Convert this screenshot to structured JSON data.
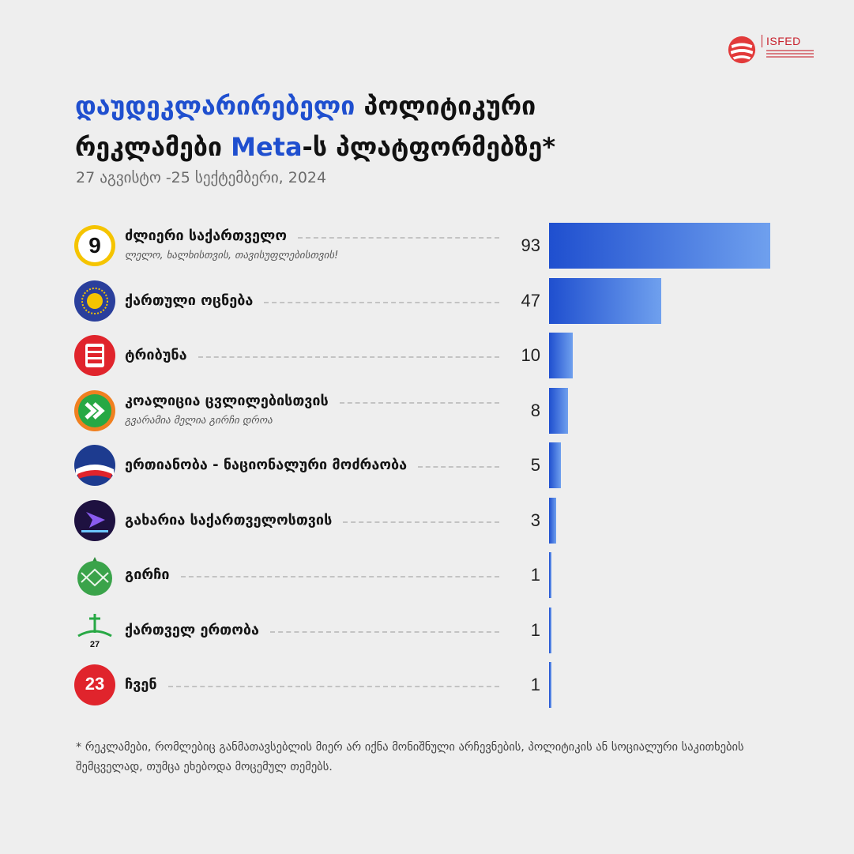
{
  "brand": {
    "name": "ISFED",
    "logo_icon": "isfed-ribbon-icon",
    "accent": "#c8202c"
  },
  "title": {
    "highlight": "დაუდეკლარირებელი",
    "line1_rest": " პოლიტიკური",
    "line2_start": "რეკლამები ",
    "line2_highlight": "Meta",
    "line2_rest": "-ს პლატფორმებზე*",
    "highlight_color": "#1f4fcf"
  },
  "subtitle": "27 აგვისტო -25 სექტემბერი, 2024",
  "chart_data": {
    "type": "bar",
    "orientation": "horizontal",
    "categories": [
      "ძლიერი საქართველო",
      "ქართული ოცნება",
      "ტრიბუნა",
      "კოალიცია ცვლილებისთვის",
      "ერთიანობა - ნაციონალური მოძრაობა",
      "გახარია საქართველოსთვის",
      "გირჩი",
      "ქართველ ერთობა",
      "ჩვენ"
    ],
    "subtitles": [
      "ლელო, ხალხისთვის, თავისუფლებისთვის!",
      "",
      "",
      "გვარამია მელია გირჩი დროა",
      "",
      "",
      "",
      "",
      ""
    ],
    "values": [
      93,
      47,
      10,
      8,
      5,
      3,
      1,
      1,
      1
    ],
    "logo_icons": [
      "number-9-circle-icon",
      "georgian-dream-sun-icon",
      "tribuna-logo-icon",
      "coalition-chevrons-icon",
      "unm-flag-wave-icon",
      "gakharia-arrow-icon",
      "girchi-cone-icon",
      "georgian-unity-cross-icon",
      "number-23-circle-icon"
    ],
    "logo_labels": [
      "9",
      "",
      "",
      "",
      "",
      "",
      "",
      "27",
      "23"
    ],
    "bar_color_start": "#1f4fcf",
    "bar_color_end": "#6fa0ee",
    "xlim": [
      0,
      93
    ]
  },
  "footnote": "* რეკლამები, რომლებიც განმათავსებლის მიერ არ იქნა მონიშნული არჩევნების, პოლიტიკის ან სოციალური საკითხების შემცველად, თუმცა ეხებოდა მოცემულ თემებს."
}
